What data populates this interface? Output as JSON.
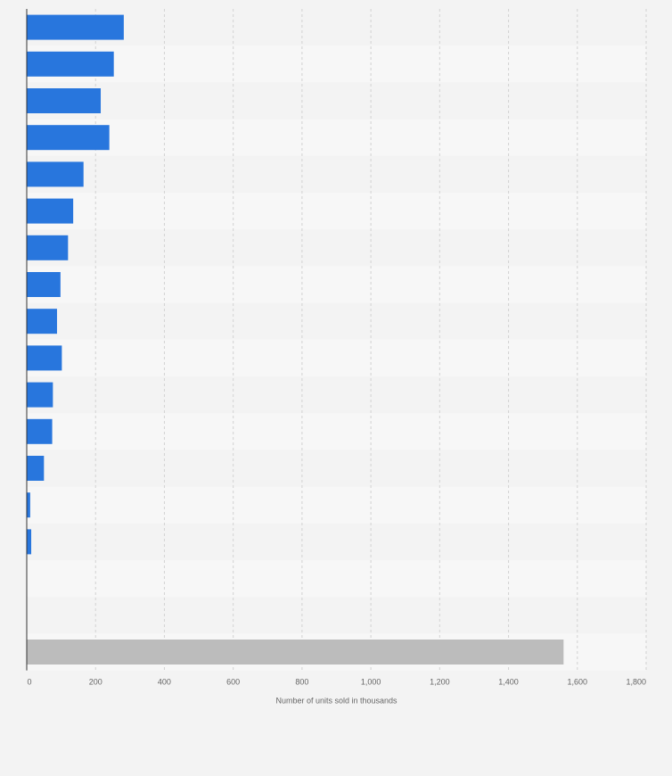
{
  "chart_data": {
    "type": "bar",
    "orientation": "horizontal",
    "categories": [
      "",
      "",
      "",
      "",
      "",
      "",
      "",
      "",
      "",
      "",
      "",
      "",
      "",
      "",
      "",
      "",
      "",
      ""
    ],
    "values": [
      282,
      253,
      215,
      240,
      165,
      135,
      120,
      98,
      88,
      102,
      76,
      74,
      50,
      10,
      13,
      0,
      0,
      1560
    ],
    "highlight_last": true,
    "xlabel": "Number of units sold in thousands",
    "ylabel": "",
    "xlim": [
      0,
      1800
    ],
    "xticks": [
      0,
      200,
      400,
      600,
      800,
      1000,
      1200,
      1400,
      1600,
      1800
    ],
    "xtick_labels": [
      "0",
      "200",
      "400",
      "600",
      "800",
      "1,000",
      "1,200",
      "1,400",
      "1,600",
      "1,800"
    ],
    "grid": true,
    "bar_color": "#2876dd",
    "highlight_color": "#bcbcbc",
    "band_colors": [
      "#f3f3f3",
      "#f7f7f7"
    ]
  }
}
